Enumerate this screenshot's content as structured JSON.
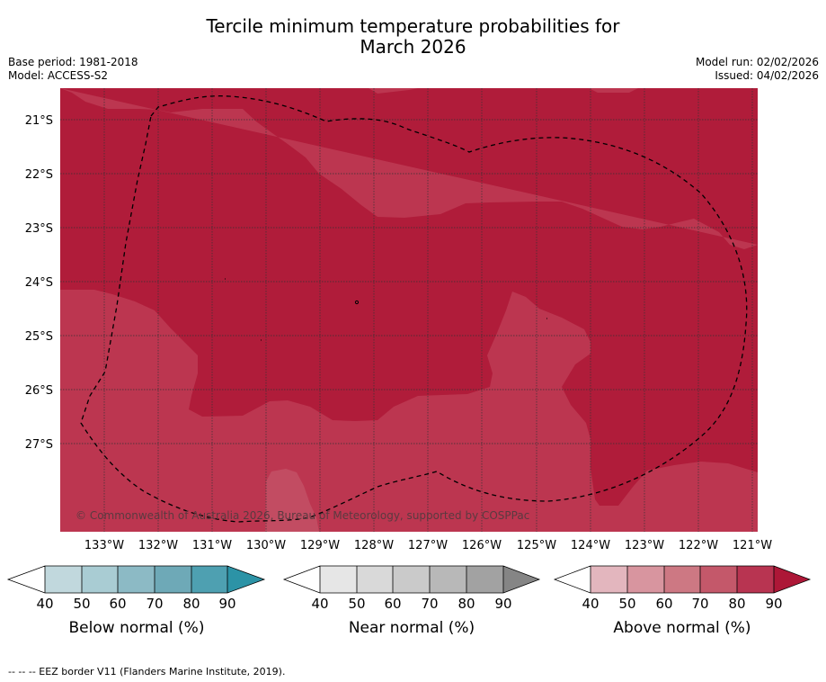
{
  "title_line1": "Tercile minimum temperature probabilities for",
  "title_line2": "March 2026",
  "meta_left": {
    "base_period": "Base period: 1981-2018",
    "model": "Model: ACCESS-S2"
  },
  "meta_right": {
    "model_run": "Model run: 02/02/2026",
    "issued": "Issued: 04/02/2026"
  },
  "map": {
    "copyright": "© Commonwealth of Australia 2026, Bureau of Meteorology, supported by COSPPac",
    "lat_labels": [
      "21°S",
      "22°S",
      "23°S",
      "24°S",
      "25°S",
      "26°S",
      "27°S"
    ],
    "lon_labels": [
      "133°W",
      "132°W",
      "131°W",
      "130°W",
      "129°W",
      "128°W",
      "127°W",
      "126°W",
      "125°W",
      "124°W",
      "123°W",
      "122°W",
      "121°W"
    ],
    "colors": {
      "above_80_90": "#b01c3a",
      "above_70_80": "#bc3650",
      "above_60_70": "#c24c62"
    }
  },
  "colorbars": [
    {
      "title": "Below normal (%)",
      "ticks": [
        "40",
        "50",
        "60",
        "70",
        "80",
        "90"
      ],
      "colors": [
        "#ffffff",
        "#c1d8dd",
        "#a9ccd3",
        "#8cbac5",
        "#6ea9b7",
        "#4ea0b1",
        "#2c93a6"
      ]
    },
    {
      "title": "Near normal (%)",
      "ticks": [
        "40",
        "50",
        "60",
        "70",
        "80",
        "90"
      ],
      "colors": [
        "#ffffff",
        "#e6e6e6",
        "#d9d9d9",
        "#cacaca",
        "#b8b8b8",
        "#a2a2a2",
        "#858585"
      ]
    },
    {
      "title": "Above normal (%)",
      "ticks": [
        "40",
        "50",
        "60",
        "70",
        "80",
        "90"
      ],
      "colors": [
        "#ffffff",
        "#e3b6be",
        "#d8959f",
        "#cd7883",
        "#c4586a",
        "#b83451",
        "#ad1737"
      ]
    }
  ],
  "footer": "--  --  -- EEZ border V11 (Flanders Marine Institute, 2019)."
}
